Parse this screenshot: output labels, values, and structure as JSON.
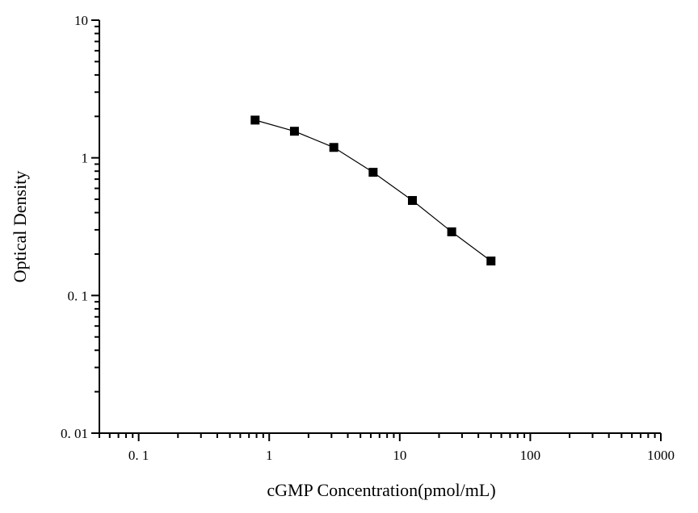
{
  "chart_data": {
    "type": "line",
    "xlabel": "cGMP Concentration(pmol/mL)",
    "ylabel": "Optical Density",
    "x_scale": "log",
    "y_scale": "log",
    "xlim": [
      0.05,
      1000
    ],
    "ylim": [
      0.01,
      10
    ],
    "x_ticks": [
      0.1,
      1,
      10,
      100,
      1000
    ],
    "x_tick_labels": [
      "0. 1",
      "1",
      "10",
      "100",
      "1000"
    ],
    "y_ticks": [
      0.01,
      0.1,
      1,
      10
    ],
    "y_tick_labels": [
      "0. 01",
      "0. 1",
      "1",
      "10"
    ],
    "grid": false,
    "marker": "square",
    "series": [
      {
        "x": [
          0.78,
          1.56,
          3.125,
          6.25,
          12.5,
          25,
          50
        ],
        "y": [
          1.88,
          1.56,
          1.19,
          0.785,
          0.49,
          0.29,
          0.178
        ]
      }
    ],
    "colors": {
      "line": "#000000",
      "marker": "#000000"
    }
  }
}
